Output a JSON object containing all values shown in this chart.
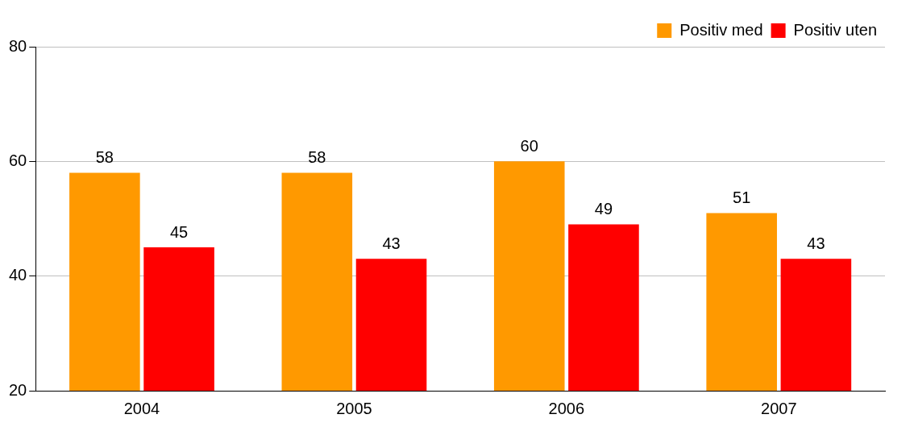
{
  "chart_data": {
    "type": "bar",
    "categories": [
      "2004",
      "2005",
      "2006",
      "2007"
    ],
    "series": [
      {
        "name": "Positiv med",
        "color": "#ff9900",
        "values": [
          58,
          58,
          60,
          51
        ]
      },
      {
        "name": "Positiv uten",
        "color": "#ff0000",
        "values": [
          45,
          43,
          49,
          43
        ]
      }
    ],
    "ylim": [
      20,
      80
    ],
    "yticks": [
      20,
      40,
      60,
      80
    ],
    "grid": "y",
    "legend": "top right",
    "data_labels": true
  }
}
